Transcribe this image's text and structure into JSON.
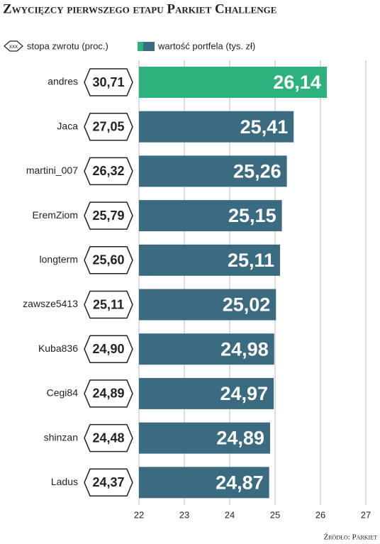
{
  "chart_data": {
    "type": "bar",
    "orientation": "horizontal",
    "title": "Zwycięzcy pierwszego etapu Parkiet Challenge",
    "source": "Źródło: Parkiet",
    "legend_marker_text": "xxx",
    "categories": [
      "andres",
      "Jaca",
      "martini_007",
      "EremZiom",
      "longterm",
      "zawsze5413",
      "Kuba836",
      "Cegi84",
      "shinzan",
      "Ladus"
    ],
    "series": [
      {
        "name": "stopa zwrotu (proc.)",
        "color": "#222222",
        "values": [
          30.71,
          27.05,
          26.32,
          25.79,
          25.6,
          25.11,
          24.9,
          24.89,
          24.48,
          24.37
        ],
        "value_labels": [
          "30,71",
          "27,05",
          "26,32",
          "25,79",
          "25,60",
          "25,11",
          "24,90",
          "24,89",
          "24,48",
          "24,37"
        ]
      },
      {
        "name": "wartość portfela (tys. zł)",
        "color": "#3a6b80",
        "colors": [
          "#2db27d",
          "#3a6b80",
          "#3a6b80",
          "#3a6b80",
          "#3a6b80",
          "#3a6b80",
          "#3a6b80",
          "#3a6b80",
          "#3a6b80",
          "#3a6b80"
        ],
        "values": [
          26.14,
          25.41,
          25.26,
          25.15,
          25.11,
          25.02,
          24.98,
          24.97,
          24.89,
          24.87
        ],
        "value_labels": [
          "26,14",
          "25,41",
          "25,26",
          "25,15",
          "25,11",
          "25,02",
          "24,98",
          "24,97",
          "24,89",
          "24,87"
        ]
      }
    ],
    "xlim": [
      22,
      27
    ],
    "xticks": [
      22,
      23,
      24,
      25,
      26,
      27
    ],
    "grid": true
  }
}
